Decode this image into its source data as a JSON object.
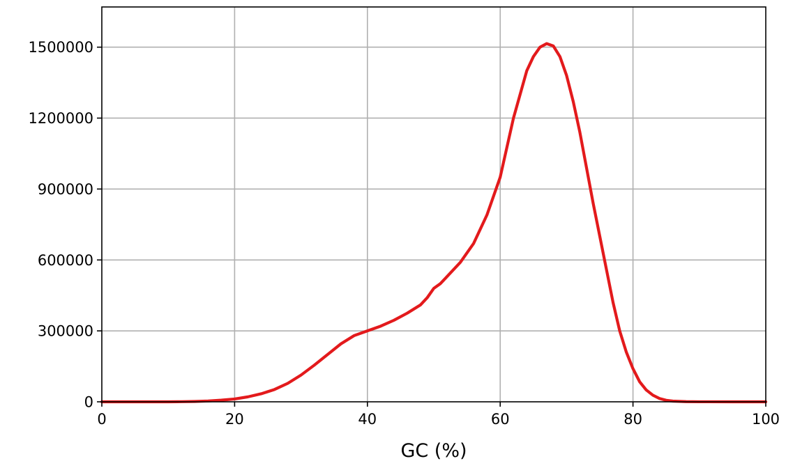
{
  "chart_data": {
    "type": "line",
    "title": "",
    "xlabel": "GC (%)",
    "ylabel": "",
    "xlim": [
      0,
      100
    ],
    "ylim": [
      0,
      1670000
    ],
    "xticks": [
      0,
      20,
      40,
      60,
      80,
      100
    ],
    "xtick_labels": [
      "0",
      "20",
      "40",
      "60",
      "80",
      "100"
    ],
    "yticks": [
      0,
      300000,
      600000,
      900000,
      1200000,
      1500000
    ],
    "ytick_labels": [
      "0",
      "300000",
      "600000",
      "900000",
      "1200000",
      "1500000"
    ],
    "grid": true,
    "series": [
      {
        "color": "#e31a1c",
        "x": [
          0,
          2,
          4,
          6,
          8,
          10,
          12,
          14,
          16,
          18,
          20,
          22,
          24,
          26,
          28,
          30,
          32,
          34,
          36,
          38,
          40,
          42,
          44,
          46,
          48,
          49,
          50,
          51,
          52,
          54,
          56,
          58,
          60,
          62,
          64,
          65,
          66,
          67,
          68,
          69,
          70,
          71,
          72,
          73,
          74,
          75,
          76,
          77,
          78,
          79,
          80,
          81,
          82,
          83,
          84,
          85,
          86,
          88,
          90,
          95,
          100
        ],
        "y": [
          0,
          0,
          0,
          0,
          0,
          0,
          500,
          1500,
          3500,
          7000,
          12000,
          21000,
          34000,
          52000,
          78000,
          113000,
          155000,
          200000,
          245000,
          280000,
          300000,
          320000,
          345000,
          375000,
          410000,
          440000,
          480000,
          500000,
          530000,
          590000,
          670000,
          790000,
          950000,
          1200000,
          1400000,
          1460000,
          1500000,
          1515000,
          1505000,
          1460000,
          1380000,
          1270000,
          1140000,
          990000,
          840000,
          700000,
          560000,
          420000,
          300000,
          210000,
          140000,
          85000,
          50000,
          28000,
          14000,
          6500,
          3000,
          800,
          200,
          0,
          0
        ]
      }
    ]
  }
}
